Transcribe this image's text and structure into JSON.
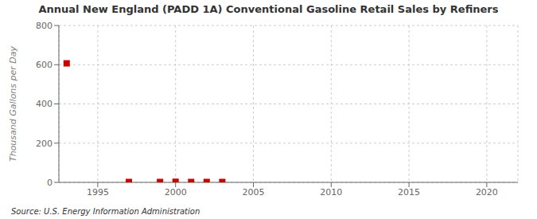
{
  "chart_data": {
    "type": "scatter",
    "title": "Annual New England (PADD 1A) Conventional Gasoline Retail Sales by Refiners",
    "ylabel": "Thousand Gallons per Day",
    "source": "Source: U.S. Energy Information Administration",
    "x": [
      1993,
      1997,
      1999,
      2000,
      2001,
      2002,
      2003
    ],
    "values": [
      607,
      2,
      2,
      3,
      2,
      2,
      2
    ],
    "color": "#cc0000",
    "marker": "square",
    "xlim": [
      1992.5,
      2022
    ],
    "ylim": [
      0,
      800
    ],
    "xticks": [
      1995,
      2000,
      2005,
      2010,
      2015,
      2020
    ],
    "yticks": [
      0,
      200,
      400,
      600,
      800
    ],
    "grid": true
  }
}
